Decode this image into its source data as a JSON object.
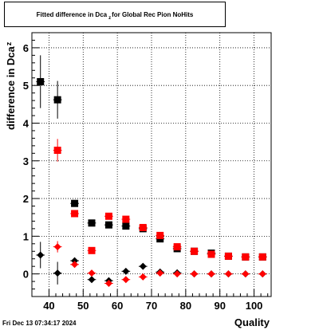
{
  "title": {
    "prefix": "Fitted difference in Dca",
    "subscript": "z",
    "suffix": "for Global Rec Pion NoHits"
  },
  "footer": {
    "timestamp": "Fri Dec 13 07:34:17 2024"
  },
  "colors": {
    "black": "#000000",
    "red": "#ff0000",
    "grid": "#000000"
  },
  "chart_data": {
    "type": "scatter",
    "title": "Fitted difference in Dca_z for Global Rec Pion NoHits",
    "xlabel": "Quality",
    "ylabel": "difference in Dca_z",
    "xlim": [
      35,
      105
    ],
    "ylim": [
      -0.6,
      6.4
    ],
    "xticks": [
      40,
      50,
      60,
      70,
      80,
      90,
      100
    ],
    "yticks": [
      0,
      1,
      2,
      3,
      4,
      5,
      6
    ],
    "grid": true,
    "series": [
      {
        "marker": "square",
        "color": "#000000",
        "x_err": 1.25,
        "points": [
          {
            "x": 37.5,
            "y": 5.1,
            "yerr": 0.7
          },
          {
            "x": 42.5,
            "y": 4.62,
            "yerr": 0.5
          },
          {
            "x": 47.5,
            "y": 1.87,
            "yerr": 0.07
          },
          {
            "x": 52.5,
            "y": 1.35,
            "yerr": 0.04
          },
          {
            "x": 57.5,
            "y": 1.3,
            "yerr": 0.04
          },
          {
            "x": 62.5,
            "y": 1.27,
            "yerr": 0.03
          },
          {
            "x": 67.5,
            "y": 1.2,
            "yerr": 0.03
          },
          {
            "x": 72.5,
            "y": 0.93,
            "yerr": 0.03
          },
          {
            "x": 77.5,
            "y": 0.67,
            "yerr": 0.02
          },
          {
            "x": 82.5,
            "y": 0.6,
            "yerr": 0.02
          },
          {
            "x": 87.5,
            "y": 0.55,
            "yerr": 0.02
          },
          {
            "x": 92.5,
            "y": 0.47,
            "yerr": 0.02
          },
          {
            "x": 97.5,
            "y": 0.45,
            "yerr": 0.02
          },
          {
            "x": 102.5,
            "y": 0.45,
            "yerr": 0.02
          }
        ]
      },
      {
        "marker": "square",
        "color": "#ff0000",
        "x_err": 1.25,
        "points": [
          {
            "x": 42.5,
            "y": 3.28,
            "yerr": 0.3
          },
          {
            "x": 47.5,
            "y": 1.6,
            "yerr": 0.07
          },
          {
            "x": 52.5,
            "y": 0.62,
            "yerr": 0.05
          },
          {
            "x": 57.5,
            "y": 1.53,
            "yerr": 0.04
          },
          {
            "x": 62.5,
            "y": 1.45,
            "yerr": 0.03
          },
          {
            "x": 67.5,
            "y": 1.23,
            "yerr": 0.03
          },
          {
            "x": 72.5,
            "y": 1.02,
            "yerr": 0.03
          },
          {
            "x": 77.5,
            "y": 0.72,
            "yerr": 0.02
          },
          {
            "x": 82.5,
            "y": 0.6,
            "yerr": 0.02
          },
          {
            "x": 87.5,
            "y": 0.52,
            "yerr": 0.02
          },
          {
            "x": 92.5,
            "y": 0.47,
            "yerr": 0.02
          },
          {
            "x": 97.5,
            "y": 0.45,
            "yerr": 0.02
          },
          {
            "x": 102.5,
            "y": 0.45,
            "yerr": 0.02
          }
        ]
      },
      {
        "marker": "diamond",
        "color": "#000000",
        "x_err": 1.25,
        "points": [
          {
            "x": 37.5,
            "y": 0.5,
            "yerr": 0.35
          },
          {
            "x": 42.5,
            "y": 0.02,
            "yerr": 0.3
          },
          {
            "x": 47.5,
            "y": 0.35,
            "yerr": 0.08
          },
          {
            "x": 52.5,
            "y": -0.15,
            "yerr": 0.05
          },
          {
            "x": 57.5,
            "y": -0.18,
            "yerr": 0.05
          },
          {
            "x": 62.5,
            "y": 0.07,
            "yerr": 0.04
          },
          {
            "x": 67.5,
            "y": 0.2,
            "yerr": 0.03
          },
          {
            "x": 72.5,
            "y": 0.05,
            "yerr": 0.03
          },
          {
            "x": 77.5,
            "y": 0.03,
            "yerr": 0.02
          },
          {
            "x": 82.5,
            "y": 0.0,
            "yerr": 0.02
          },
          {
            "x": 87.5,
            "y": 0.0,
            "yerr": 0.02
          },
          {
            "x": 92.5,
            "y": 0.0,
            "yerr": 0.02
          },
          {
            "x": 97.5,
            "y": 0.0,
            "yerr": 0.02
          },
          {
            "x": 102.5,
            "y": 0.0,
            "yerr": 0.02
          }
        ]
      },
      {
        "marker": "diamond",
        "color": "#ff0000",
        "x_err": 1.25,
        "points": [
          {
            "x": 42.5,
            "y": 0.72,
            "yerr": 0.15
          },
          {
            "x": 47.5,
            "y": 0.25,
            "yerr": 0.07
          },
          {
            "x": 52.5,
            "y": 0.02,
            "yerr": 0.05
          },
          {
            "x": 57.5,
            "y": -0.25,
            "yerr": 0.05
          },
          {
            "x": 62.5,
            "y": -0.15,
            "yerr": 0.04
          },
          {
            "x": 67.5,
            "y": -0.08,
            "yerr": 0.03
          },
          {
            "x": 72.5,
            "y": 0.02,
            "yerr": 0.03
          },
          {
            "x": 77.5,
            "y": 0.0,
            "yerr": 0.02
          },
          {
            "x": 82.5,
            "y": 0.0,
            "yerr": 0.02
          },
          {
            "x": 87.5,
            "y": 0.0,
            "yerr": 0.02
          },
          {
            "x": 92.5,
            "y": 0.0,
            "yerr": 0.02
          },
          {
            "x": 97.5,
            "y": 0.0,
            "yerr": 0.02
          },
          {
            "x": 102.5,
            "y": 0.0,
            "yerr": 0.02
          }
        ]
      }
    ]
  }
}
